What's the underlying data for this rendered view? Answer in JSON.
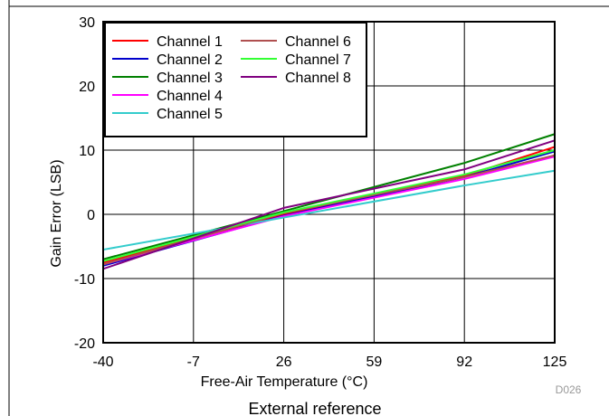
{
  "chart_data": {
    "type": "line",
    "title": "",
    "xlabel": "Free-Air Temperature (°C)",
    "ylabel": "Gain Error (LSB)",
    "xlim": [
      -40,
      125
    ],
    "ylim": [
      -20,
      30
    ],
    "x_ticks": [
      "-40",
      "-7",
      "26",
      "59",
      "92",
      "125"
    ],
    "y_ticks": [
      "30",
      "20",
      "10",
      "0",
      "-10",
      "-20"
    ],
    "grid": true,
    "legend_position": "top-left",
    "x": [
      -40,
      26,
      92,
      125
    ],
    "series": [
      {
        "name": "Channel 1",
        "color": "#ff0000",
        "values": [
          -7.5,
          0.0,
          6.0,
          10.5
        ]
      },
      {
        "name": "Channel 2",
        "color": "#0000cc",
        "values": [
          -8.0,
          -0.2,
          5.8,
          9.8
        ]
      },
      {
        "name": "Channel 3",
        "color": "#008000",
        "values": [
          -7.0,
          0.5,
          8.0,
          12.5
        ]
      },
      {
        "name": "Channel 4",
        "color": "#ff00ff",
        "values": [
          -7.8,
          -0.3,
          5.5,
          9.0
        ]
      },
      {
        "name": "Channel 5",
        "color": "#33cccc",
        "values": [
          -5.5,
          -0.5,
          4.5,
          6.8
        ]
      },
      {
        "name": "Channel 6",
        "color": "#b05050",
        "values": [
          -7.8,
          0.2,
          5.8,
          9.2
        ]
      },
      {
        "name": "Channel 7",
        "color": "#33ff33",
        "values": [
          -7.3,
          0.3,
          6.2,
          10.0
        ]
      },
      {
        "name": "Channel 8",
        "color": "#800080",
        "values": [
          -8.5,
          1.0,
          7.0,
          11.5
        ]
      }
    ]
  },
  "figure_id": "D026",
  "caption": "External reference"
}
